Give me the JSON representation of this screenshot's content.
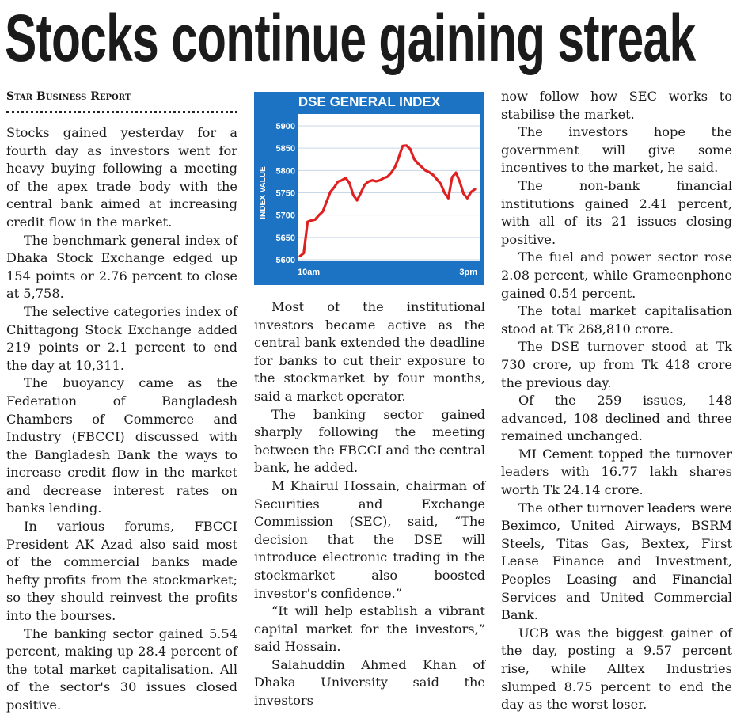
{
  "headline": "Stocks continue gaining streak",
  "byline": "Star Business Report",
  "chart_data": {
    "type": "line",
    "title": "DSE GENERAL INDEX",
    "ylabel": "INDEX VALUE",
    "xlabel": "",
    "ylim": [
      5600,
      5900
    ],
    "yticks": [
      5900,
      5850,
      5800,
      5750,
      5700,
      5650,
      5600
    ],
    "x_start_label": "10am",
    "x_end_label": "3pm",
    "grid": true,
    "colors": {
      "line": "#e02020",
      "frame": "#1c73c4",
      "plot_bg": "#ffffff",
      "grid": "#c8d6e6"
    },
    "series": [
      {
        "values": [
          5608,
          5615,
          5685,
          5688,
          5690,
          5700,
          5708,
          5730,
          5752,
          5762,
          5775,
          5778,
          5783,
          5772,
          5745,
          5733,
          5750,
          5768,
          5775,
          5778,
          5776,
          5778,
          5783,
          5786,
          5795,
          5808,
          5830,
          5855,
          5856,
          5848,
          5826,
          5816,
          5808,
          5800,
          5796,
          5790,
          5780,
          5770,
          5750,
          5738,
          5785,
          5795,
          5775,
          5748,
          5738,
          5752,
          5758
        ]
      }
    ]
  },
  "columns": {
    "col1": [
      "Stocks gained yesterday for a fourth day as investors went for heavy buying following a meeting of the apex trade body with the central bank aimed at increasing credit flow in the market.",
      "The benchmark general index of Dhaka Stock Exchange edged up 154 points or 2.76 percent to close at 5,758.",
      "The selective categories index of Chittagong Stock Exchange added 219 points or 2.1 percent to end the day at 10,311.",
      "The buoyancy came as the Federation of Bangladesh Chambers of Commerce and Industry (FBCCI) discussed with the Bangladesh Bank the ways to increase credit flow in the market and decrease interest rates on banks lending.",
      "In various forums, FBCCI President AK Azad also said most of the commercial banks made hefty profits from the stockmarket; so they should reinvest the profits into the bourses.",
      "The banking sector gained 5.54 percent, making up 28.4 percent of the total market capitalisation. All of the sector's 30 issues closed positive."
    ],
    "col2": [
      "Most of the institutional investors became active as the central bank extended the deadline for banks to cut their exposure to the stockmarket by four months, said a market operator.",
      "The banking sector gained sharply following the meeting between the FBCCI and the central bank, he added.",
      "M Khairul Hossain, chairman of Securities and Exchange Commission (SEC), said, “The decision that the DSE will introduce electronic trading in the stockmarket also boosted investor's confidence.”",
      "“It will help establish a vibrant capital market for the investors,” said Hossain.",
      "Salahuddin Ahmed Khan of Dhaka University said the investors"
    ],
    "col3": [
      "now follow how SEC works to stabilise the market.",
      "The investors hope the government will give some incentives to the market, he said.",
      "The non-bank financial institutions gained 2.41 percent, with all of its 21 issues closing positive.",
      "The fuel and power sector rose 2.08 percent, while Grameenphone gained 0.54 percent.",
      "The total market capitalisation stood at Tk 268,810 crore.",
      "The DSE turnover stood at Tk 730 crore, up from Tk 418 crore the previous day.",
      "Of the 259 issues, 148 advanced, 108 declined and three remained unchanged.",
      "MI Cement topped the turnover leaders with 16.77 lakh shares worth Tk 24.14 crore.",
      "The other turnover leaders were Beximco, United Airways, BSRM Steels, Titas Gas, Bextex, First Lease Finance and Investment, Peoples Leasing and Financial Services and United Commercial Bank.",
      "UCB was the biggest gainer of the day, posting a 9.57 percent rise, while Alltex Industries slumped 8.75 percent to end the day as the worst loser."
    ]
  }
}
